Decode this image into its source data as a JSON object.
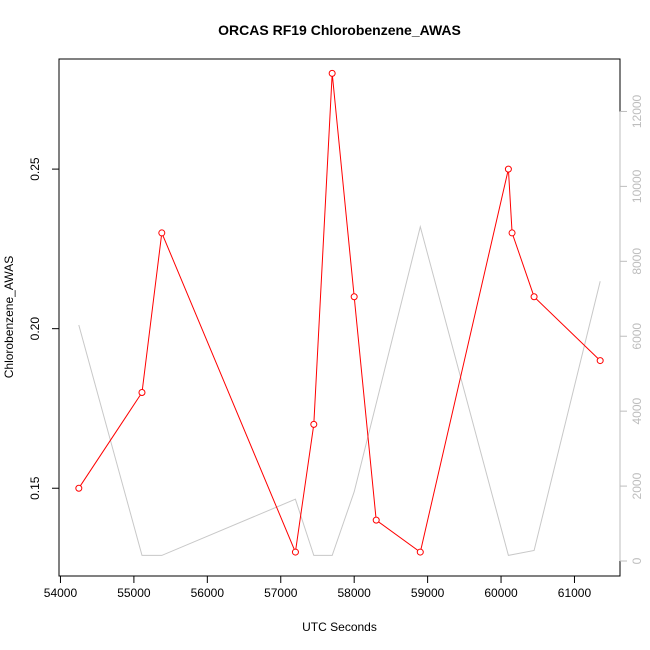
{
  "chart_data": {
    "type": "line",
    "title": "ORCAS RF19 Chlorobenzene_AWAS",
    "xlabel": "UTC Seconds",
    "ylabel": "Chlorobenzene_AWAS",
    "xlim": [
      53980,
      61620
    ],
    "ylim": [
      0.1225,
      0.2845
    ],
    "y2lim": [
      -400,
      13400
    ],
    "x_ticks": [
      54000,
      55000,
      56000,
      57000,
      58000,
      59000,
      60000,
      61000
    ],
    "y_ticks": [
      0.15,
      0.2,
      0.25
    ],
    "y_tick_labels": [
      "0.15",
      "0.20",
      "0.25"
    ],
    "y2_ticks": [
      0,
      2000,
      4000,
      6000,
      8000,
      10000,
      12000
    ],
    "grid": false,
    "series": [
      {
        "axis": "left",
        "color": "#ff0000",
        "marker": "open-circle",
        "x": [
          54250,
          55110,
          55380,
          57200,
          57450,
          57700,
          58000,
          58300,
          58900,
          60100,
          60150,
          60450,
          61350
        ],
        "y": [
          0.15,
          0.18,
          0.23,
          0.13,
          0.17,
          0.28,
          0.21,
          0.14,
          0.13,
          0.25,
          0.23,
          0.21,
          0.19
        ]
      },
      {
        "axis": "right",
        "color": "#c8c8c8",
        "marker": "none",
        "x": [
          54250,
          55110,
          55380,
          57200,
          57450,
          57700,
          58000,
          58900,
          60100,
          60450,
          61350
        ],
        "y": [
          6300,
          150,
          150,
          1650,
          150,
          150,
          1850,
          8920,
          150,
          280,
          7470
        ]
      }
    ]
  }
}
